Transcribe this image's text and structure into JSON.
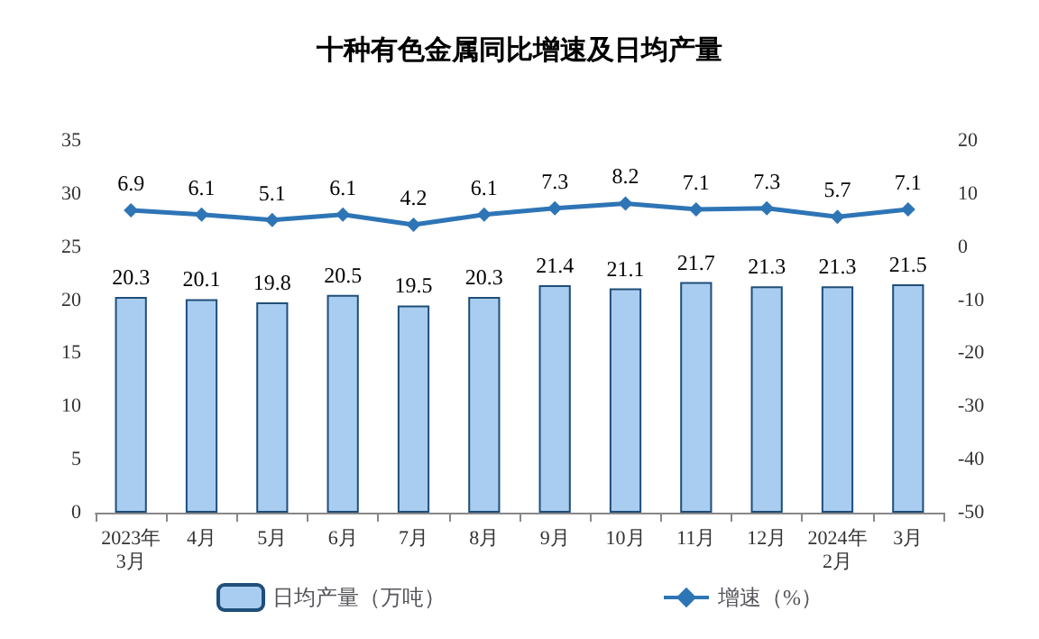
{
  "chart_data": {
    "type": "bar",
    "title": "十种有色金属同比增速及日均产量",
    "categories": [
      "2023年\n3月",
      "4月",
      "5月",
      "6月",
      "7月",
      "8月",
      "9月",
      "10月",
      "11月",
      "12月",
      "2024年\n2月",
      "3月"
    ],
    "series": [
      {
        "name": "日均产量（万吨）",
        "color": "#a9cdf0",
        "values": [
          20.3,
          20.1,
          19.8,
          20.5,
          19.5,
          20.3,
          21.4,
          21.1,
          21.7,
          21.3,
          21.3,
          21.5
        ]
      },
      {
        "name": "增速（%）",
        "type": "line",
        "axis": "y2",
        "color": "#2e75b6",
        "marker": "diamond",
        "values": [
          6.9,
          6.1,
          5.1,
          6.1,
          4.2,
          6.1,
          7.3,
          8.2,
          7.1,
          7.3,
          5.7,
          7.1
        ]
      }
    ],
    "ylim": [
      0,
      35
    ],
    "yticks": [
      0,
      5,
      10,
      15,
      20,
      25,
      30,
      35
    ],
    "y2lim": [
      -50,
      20
    ],
    "y2ticks": [
      -50,
      -40,
      -30,
      -20,
      -10,
      0,
      10,
      20
    ],
    "data_labels": true,
    "grid": false,
    "legend": "bottom"
  }
}
